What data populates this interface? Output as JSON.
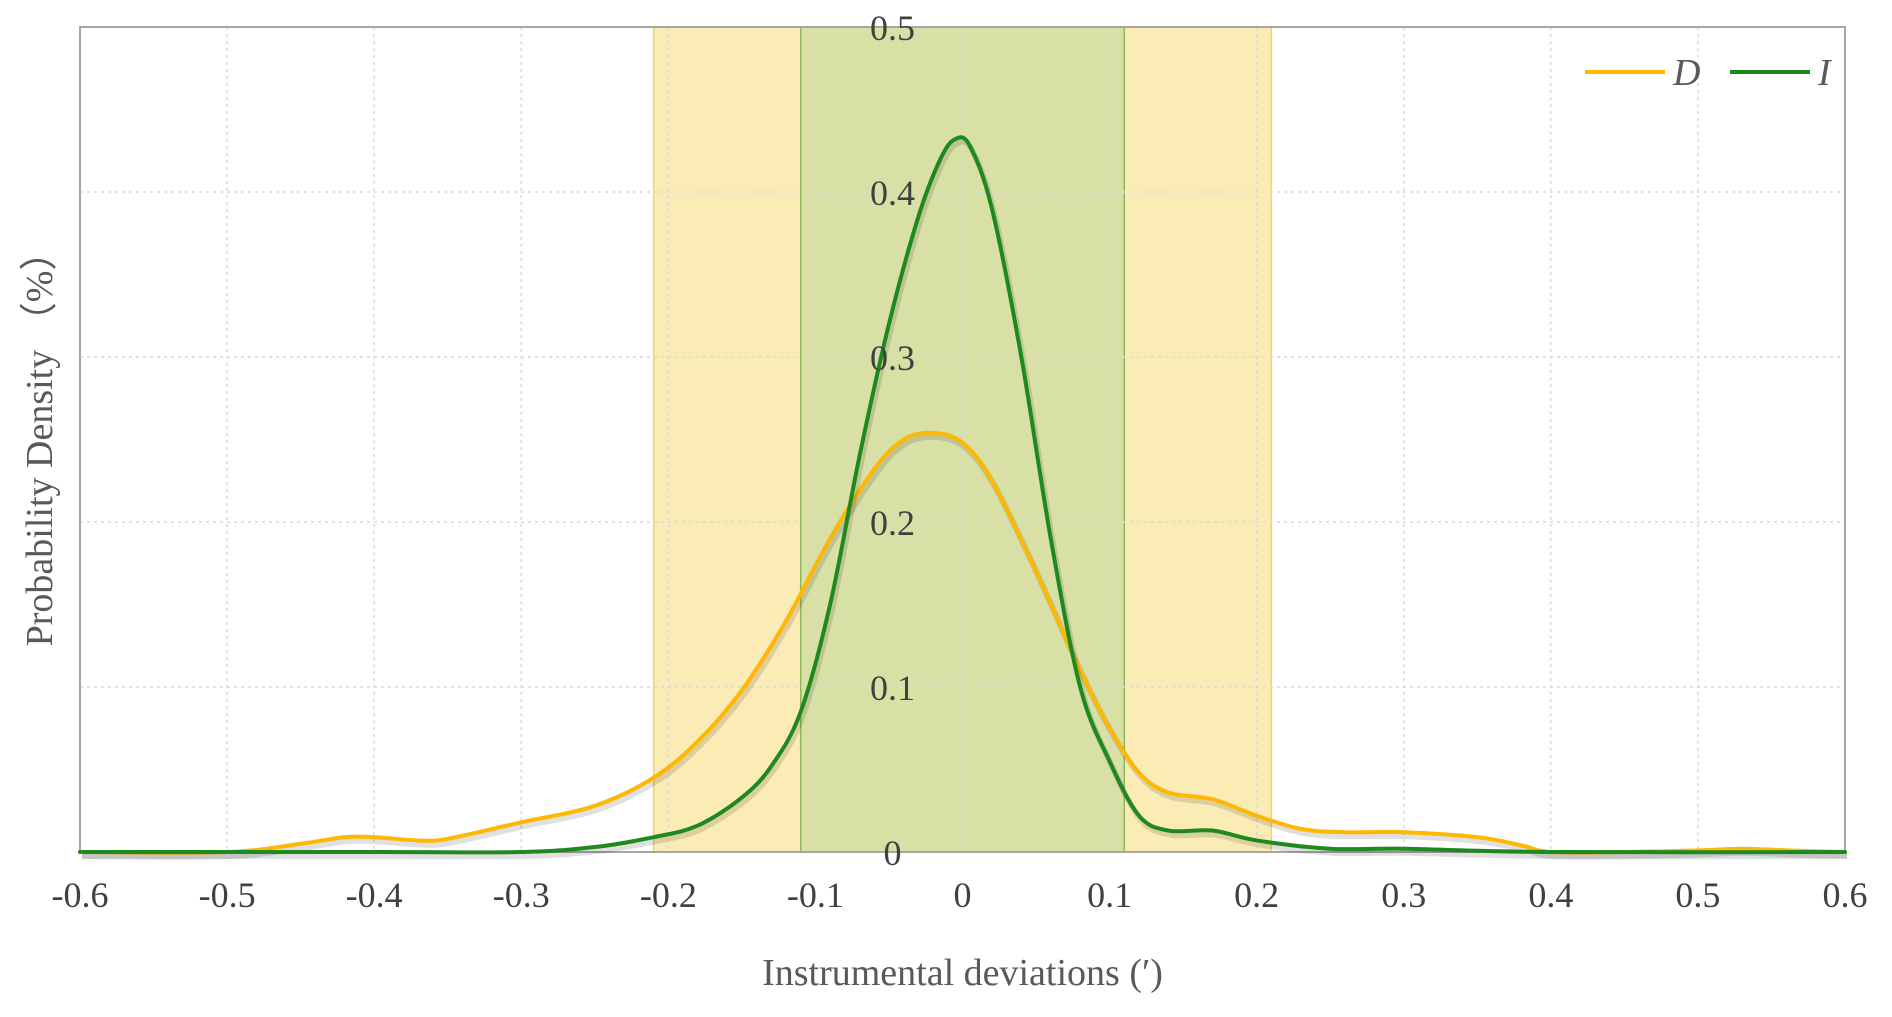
{
  "chart_data": {
    "type": "line",
    "xlabel": "Instrumental deviations (′)",
    "ylabel": "Probability Density （%）",
    "xlim": [
      -0.6,
      0.6
    ],
    "ylim": [
      0,
      0.5
    ],
    "x_ticks": [
      "-0.6",
      "-0.5",
      "-0.4",
      "-0.3",
      "-0.2",
      "-0.1",
      "0",
      "0.1",
      "0.2",
      "0.3",
      "0.4",
      "0.5",
      "0.6"
    ],
    "y_ticks": [
      "0",
      "0.1",
      "0.2",
      "0.3",
      "0.4",
      "0.5"
    ],
    "grid": true,
    "legend_position": "top-right",
    "bands": [
      {
        "x_range": [
          -0.21,
          0.21
        ],
        "color": "#FBEBB5",
        "edge_color": "#F5D36A"
      },
      {
        "x_range": [
          -0.11,
          0.11
        ],
        "color": "#D8E0A5",
        "edge_color": "#8FB85A"
      }
    ],
    "series": [
      {
        "name": "D",
        "color": "#FFB800",
        "x": [
          -0.6,
          -0.5,
          -0.45,
          -0.42,
          -0.4,
          -0.37,
          -0.35,
          -0.3,
          -0.25,
          -0.21,
          -0.18,
          -0.15,
          -0.12,
          -0.09,
          -0.06,
          -0.04,
          -0.02,
          0.0,
          0.02,
          0.05,
          0.08,
          0.1,
          0.12,
          0.14,
          0.17,
          0.2,
          0.23,
          0.26,
          0.3,
          0.35,
          0.38,
          0.4,
          0.45,
          0.5,
          0.53,
          0.56,
          0.6
        ],
        "values": [
          0.0,
          0.0,
          0.005,
          0.009,
          0.009,
          0.007,
          0.008,
          0.018,
          0.028,
          0.045,
          0.067,
          0.098,
          0.14,
          0.19,
          0.232,
          0.25,
          0.254,
          0.248,
          0.225,
          0.17,
          0.11,
          0.075,
          0.048,
          0.036,
          0.032,
          0.022,
          0.014,
          0.012,
          0.012,
          0.009,
          0.004,
          0.0,
          0.0,
          0.001,
          0.002,
          0.001,
          0.0
        ]
      },
      {
        "name": "I",
        "color": "#1E8A1E",
        "x": [
          -0.6,
          -0.4,
          -0.3,
          -0.25,
          -0.21,
          -0.18,
          -0.15,
          -0.13,
          -0.11,
          -0.09,
          -0.07,
          -0.05,
          -0.03,
          -0.015,
          -0.005,
          0.005,
          0.02,
          0.04,
          0.06,
          0.08,
          0.1,
          0.12,
          0.14,
          0.17,
          0.2,
          0.25,
          0.3,
          0.4,
          0.6
        ],
        "values": [
          0.0,
          0.0,
          0.0,
          0.003,
          0.009,
          0.016,
          0.033,
          0.052,
          0.085,
          0.15,
          0.24,
          0.32,
          0.385,
          0.42,
          0.432,
          0.428,
          0.39,
          0.3,
          0.19,
          0.1,
          0.055,
          0.022,
          0.013,
          0.013,
          0.007,
          0.002,
          0.002,
          0.0,
          0.0
        ]
      }
    ]
  }
}
